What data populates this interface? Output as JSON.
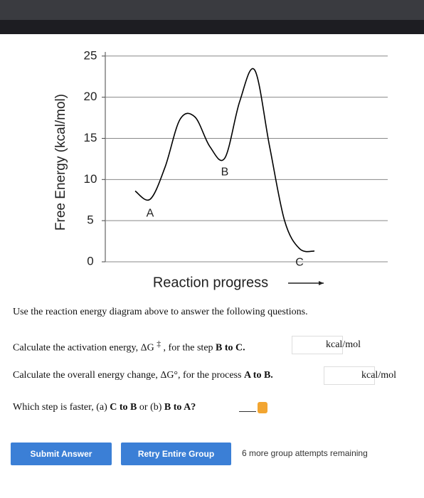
{
  "chart_data": {
    "type": "line",
    "y_label": "Free Energy (kcal/mol)",
    "x_label": "Reaction progress",
    "categories": [
      null,
      "A",
      null,
      null,
      null,
      null,
      "B",
      null,
      null,
      null,
      null,
      "C",
      null
    ],
    "values": [
      8.6,
      7.6,
      11.5,
      17.3,
      17.6,
      14,
      12.6,
      19.5,
      23.3,
      14,
      5,
      1.6,
      1.3
    ],
    "color": "#000000",
    "ylim": [
      0,
      25.5
    ],
    "yticks": [
      0,
      5,
      10,
      15,
      20,
      25
    ],
    "grid": true
  },
  "intro": "Use the reaction energy diagram above to answer the following questions.",
  "questions": [
    {
      "text": "Calculate the activation energy, ΔG",
      "sup": "‡",
      "text2": ", for the step",
      "bold": "B to C.",
      "unit": "kcal/mol"
    },
    {
      "text": "Calculate the overall energy change, ΔG°, for the process",
      "bold": "A to B.",
      "unit": "kcal/mol"
    },
    {
      "text": "Which step is faster, (a)",
      "bold": "C to B",
      "text2": "or (b)",
      "bold2": "B to A?"
    }
  ],
  "buttons": {
    "submit": "Submit Answer",
    "retry": "Retry Entire Group"
  },
  "attempts": "6 more group attempts remaining"
}
